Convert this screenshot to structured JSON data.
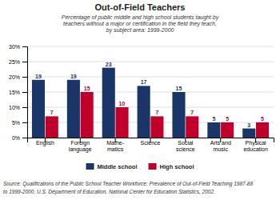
{
  "chart_data": {
    "type": "bar",
    "title": "Out-of-Field Teachers",
    "subtitle": "Percentage of public middle and high school students taught by\nteachers without a major or certification in the field they teach,\nby subject area: 1999-2000",
    "categories": [
      "English",
      "Foreign\nlanguage",
      "Mathe-\nmatics",
      "Science",
      "Social\nscience",
      "Arts and\nmusic",
      "Physical\neducation"
    ],
    "series": [
      {
        "name": "Middle school",
        "color": "#1a3668",
        "values": [
          19,
          19,
          23,
          17,
          15,
          5,
          3
        ]
      },
      {
        "name": "High school",
        "color": "#c0002a",
        "values": [
          7,
          15,
          10,
          7,
          7,
          5,
          5
        ]
      }
    ],
    "ylim": [
      0,
      30
    ],
    "yticks": [
      {
        "value": 0,
        "label": "0%"
      },
      {
        "value": 5,
        "label": "5%"
      },
      {
        "value": 10,
        "label": "10%"
      },
      {
        "value": 15,
        "label": "15%"
      },
      {
        "value": 20,
        "label": "20%"
      },
      {
        "value": 25,
        "label": "25%"
      },
      {
        "value": 30,
        "label": "30%"
      }
    ],
    "grid": true,
    "data_labels": true,
    "legend": "bottom",
    "annotations": [
      "Source: Qualifications of the Public School Teacher Workforce: Prevalence of Out-of-Field Teaching 1987-88",
      "to 1999-2000, U.S. Department of Education, National Center for Education Statistics, 2002."
    ]
  }
}
